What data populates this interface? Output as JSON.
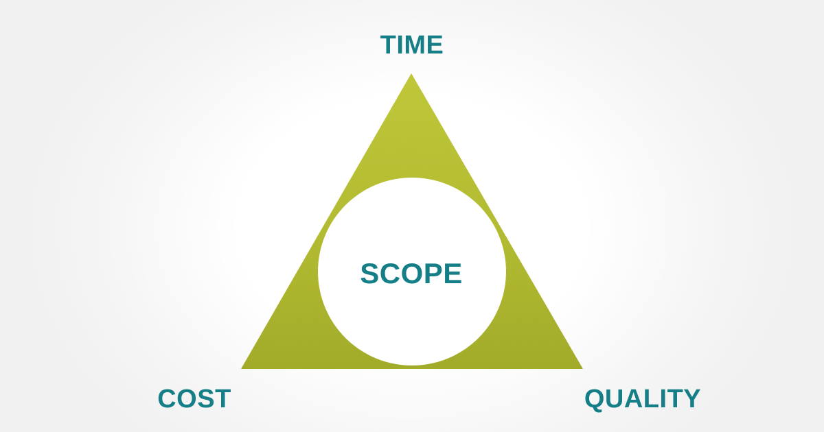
{
  "diagram": {
    "top_label": "TIME",
    "bottom_left_label": "COST",
    "bottom_right_label": "QUALITY",
    "center_label": "SCOPE"
  },
  "colors": {
    "label_text": "#167e86",
    "triangle_light": "#c3cb36",
    "triangle_dark": "#9da823",
    "circle_fill": "#ffffff"
  }
}
